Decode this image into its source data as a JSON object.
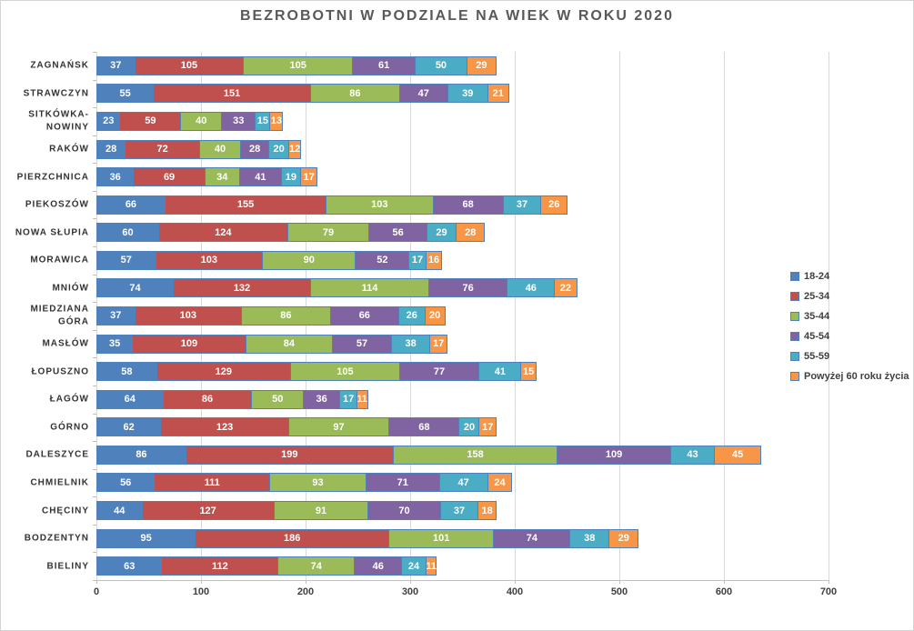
{
  "chart_data": {
    "type": "bar",
    "orientation": "horizontal",
    "stacked": true,
    "title": "BEZROBOTNI W PODZIALE NA WIEK W ROKU 2020",
    "xlabel": "",
    "ylabel": "",
    "xlim": [
      0,
      700
    ],
    "x_ticks": [
      0,
      100,
      200,
      300,
      400,
      500,
      600,
      700
    ],
    "grid": "vertical",
    "legend_position": "right",
    "data_labels": "inside-center-white",
    "categories": [
      "ZAGNAŃSK",
      "STRAWCZYN",
      "SITKÓWKA-NOWINY",
      "RAKÓW",
      "PIERZCHNICA",
      "PIEKOSZÓW",
      "NOWA SŁUPIA",
      "MORAWICA",
      "MNIÓW",
      "MIEDZIANA GÓRA",
      "MASŁÓW",
      "ŁOPUSZNO",
      "ŁAGÓW",
      "GÓRNO",
      "DALESZYCE",
      "CHMIELNIK",
      "CHĘCINY",
      "BODZENTYN",
      "BIELINY"
    ],
    "series": [
      {
        "name": "18-24",
        "color": "#4F81BD",
        "values": [
          37,
          55,
          23,
          28,
          36,
          66,
          60,
          57,
          74,
          37,
          35,
          58,
          64,
          62,
          86,
          56,
          44,
          95,
          63
        ]
      },
      {
        "name": "25-34",
        "color": "#C0504D",
        "values": [
          105,
          151,
          59,
          72,
          69,
          155,
          124,
          103,
          132,
          103,
          109,
          129,
          86,
          123,
          199,
          111,
          127,
          186,
          112
        ]
      },
      {
        "name": "35-44",
        "color": "#9BBB59",
        "values": [
          105,
          86,
          40,
          40,
          34,
          103,
          79,
          90,
          114,
          86,
          84,
          105,
          50,
          97,
          158,
          93,
          91,
          101,
          74
        ]
      },
      {
        "name": "45-54",
        "color": "#8064A2",
        "values": [
          61,
          47,
          33,
          28,
          41,
          68,
          56,
          52,
          76,
          66,
          57,
          77,
          36,
          68,
          109,
          71,
          70,
          74,
          46
        ]
      },
      {
        "name": "55-59",
        "color": "#4BACC6",
        "values": [
          50,
          39,
          15,
          20,
          19,
          37,
          29,
          17,
          46,
          26,
          38,
          41,
          17,
          20,
          43,
          47,
          37,
          38,
          24
        ]
      },
      {
        "name": "Powyżej 60 roku życia",
        "color": "#F79646",
        "values": [
          29,
          21,
          13,
          12,
          17,
          26,
          28,
          16,
          22,
          20,
          17,
          15,
          11,
          17,
          45,
          24,
          18,
          29,
          11
        ]
      }
    ],
    "colors": {
      "segment_border": "#4F81BD",
      "gridline": "#d9d9d9",
      "axis_line": "#bfbfbf",
      "title_text": "#595959",
      "axis_text": "#404040",
      "category_text": "#333333",
      "bar_label_text": "#ffffff"
    }
  }
}
